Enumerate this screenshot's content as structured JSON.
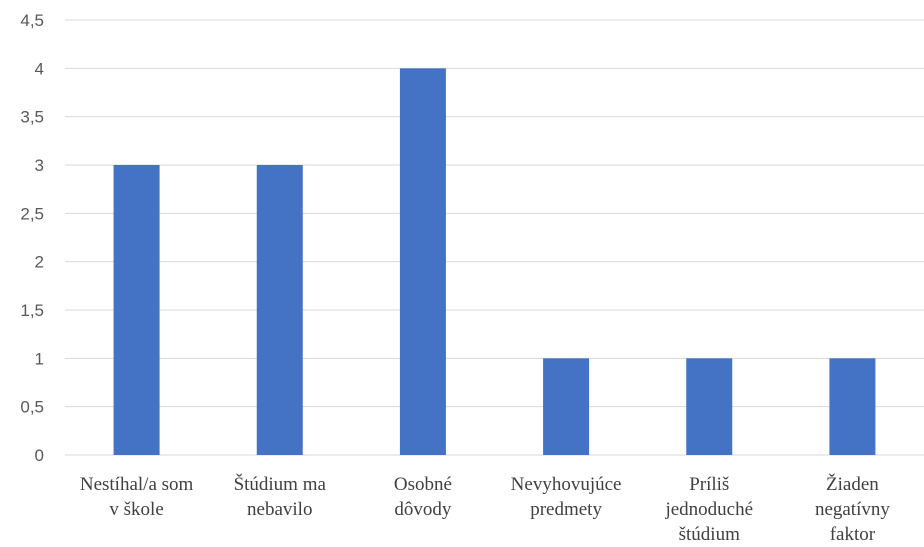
{
  "chart_data": {
    "type": "bar",
    "title": "",
    "xlabel": "",
    "ylabel": "",
    "categories": [
      "Nestíhal/a som v škole",
      "Štúdium ma nebavilo",
      "Osobné dôvody",
      "Nevyhovujúce predmety",
      "Príliš jednoduché štúdium",
      "Žiaden negatívny faktor"
    ],
    "category_lines": [
      [
        "Nestíhal/a som",
        "v škole"
      ],
      [
        "Štúdium ma",
        "nebavilo"
      ],
      [
        "Osobné",
        "dôvody"
      ],
      [
        "Nevyhovujúce",
        "predmety"
      ],
      [
        "Príliš",
        "jednoduché",
        "štúdium"
      ],
      [
        "Žiaden",
        "negatívny",
        "faktor"
      ]
    ],
    "values": [
      3,
      3,
      4,
      1,
      1,
      1
    ],
    "ylim": [
      0,
      4.5
    ],
    "yticks": [
      "0",
      "0,5",
      "1",
      "1,5",
      "2",
      "2,5",
      "3",
      "3,5",
      "4",
      "4,5"
    ],
    "grid": true,
    "legend": "none",
    "colors": {
      "bar": "#4472C4",
      "grid": "#D9D9D9"
    }
  }
}
